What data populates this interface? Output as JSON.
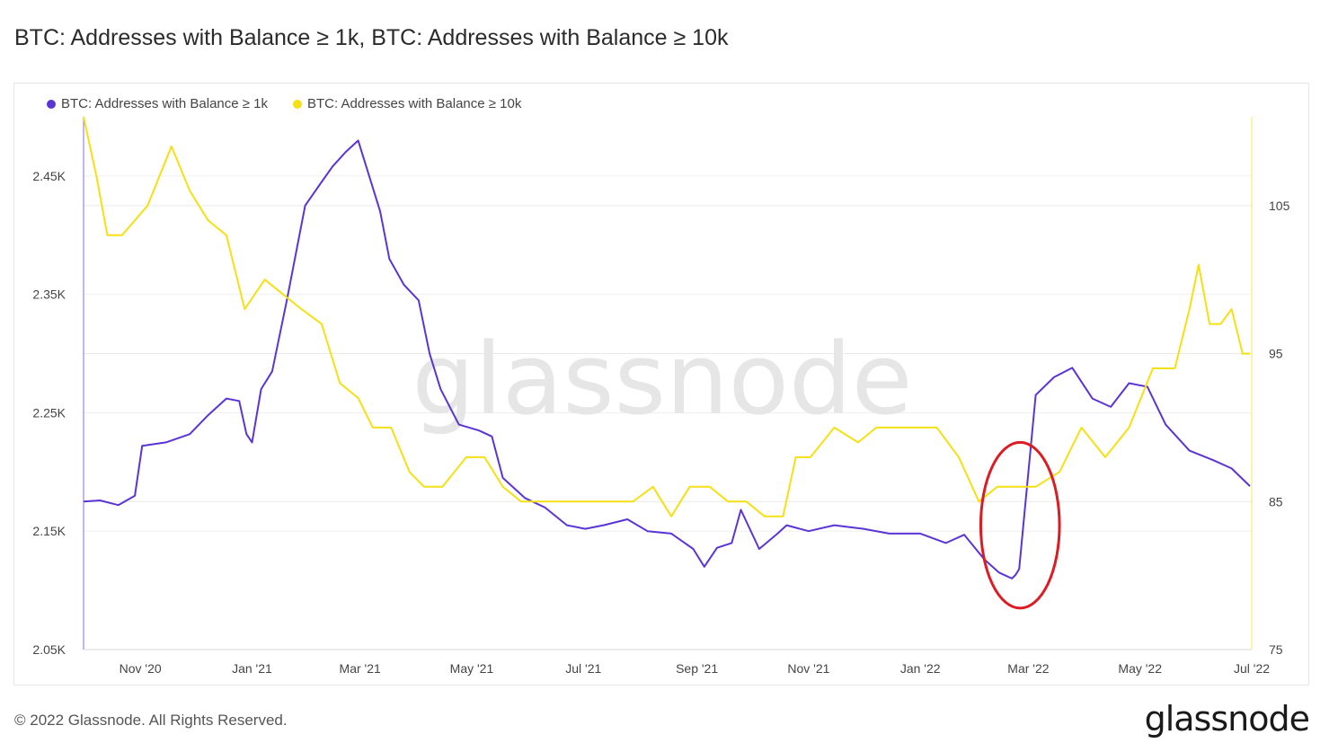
{
  "page": {
    "title": "BTC: Addresses with Balance ≥ 1k, BTC: Addresses with Balance ≥ 10k",
    "footer": "© 2022 Glassnode. All Rights Reserved.",
    "brand": "glassnode",
    "watermark": "glassnode"
  },
  "colors": {
    "series1": "#5b34d6",
    "series2": "#f5e016",
    "annotation": "#dd1b22"
  },
  "chart_data": {
    "type": "line",
    "title": "BTC: Addresses with Balance ≥ 1k, BTC: Addresses with Balance ≥ 10k",
    "x_ticks": [
      "Nov '20",
      "Jan '21",
      "Mar '21",
      "May '21",
      "Jul '21",
      "Sep '21",
      "Nov '21",
      "Jan '22",
      "Mar '22",
      "May '22",
      "Jul '22"
    ],
    "x_range": [
      "2020-10-01",
      "2022-07-01"
    ],
    "y_left": {
      "ticks": [
        "2.05K",
        "2.15K",
        "2.25K",
        "2.35K",
        "2.45K"
      ],
      "tick_values": [
        2050,
        2150,
        2250,
        2350,
        2450
      ],
      "range": [
        2050,
        2500
      ]
    },
    "y_right": {
      "ticks": [
        "75",
        "85",
        "95",
        "105"
      ],
      "tick_values": [
        75,
        85,
        95,
        105
      ],
      "range": [
        75,
        111
      ]
    },
    "grid": "horizontal",
    "legend_position": "top-left",
    "series": [
      {
        "name": "BTC: Addresses with Balance ≥ 1k",
        "axis": "left",
        "color": "#5b34d6",
        "x": [
          "2020-10-01",
          "2020-10-10",
          "2020-10-20",
          "2020-10-29",
          "2020-11-02",
          "2020-11-15",
          "2020-11-28",
          "2020-12-08",
          "2020-12-18",
          "2020-12-25",
          "2020-12-29",
          "2021-01-01",
          "2021-01-06",
          "2021-01-12",
          "2021-01-20",
          "2021-01-30",
          "2021-02-08",
          "2021-02-14",
          "2021-02-21",
          "2021-02-28",
          "2021-03-05",
          "2021-03-12",
          "2021-03-17",
          "2021-03-25",
          "2021-04-02",
          "2021-04-08",
          "2021-04-14",
          "2021-04-24",
          "2021-05-05",
          "2021-05-12",
          "2021-05-18",
          "2021-05-30",
          "2021-06-10",
          "2021-06-22",
          "2021-07-02",
          "2021-07-12",
          "2021-07-25",
          "2021-08-05",
          "2021-08-18",
          "2021-08-30",
          "2021-09-05",
          "2021-09-12",
          "2021-09-20",
          "2021-09-25",
          "2021-10-05",
          "2021-10-15",
          "2021-10-20",
          "2021-11-01",
          "2021-11-15",
          "2021-12-01",
          "2021-12-15",
          "2022-01-01",
          "2022-01-15",
          "2022-01-25",
          "2022-02-05",
          "2022-02-13",
          "2022-02-20",
          "2022-02-22",
          "2022-02-24",
          "2022-03-05",
          "2022-03-15",
          "2022-03-25",
          "2022-04-05",
          "2022-04-15",
          "2022-04-25",
          "2022-05-05",
          "2022-05-15",
          "2022-05-28",
          "2022-06-10",
          "2022-06-20",
          "2022-06-30"
        ],
        "y": [
          2175,
          2176,
          2172,
          2180,
          2222,
          2225,
          2232,
          2248,
          2262,
          2260,
          2232,
          2225,
          2270,
          2285,
          2345,
          2425,
          2445,
          2458,
          2470,
          2480,
          2455,
          2420,
          2380,
          2358,
          2345,
          2300,
          2270,
          2240,
          2235,
          2230,
          2195,
          2178,
          2170,
          2155,
          2152,
          2155,
          2160,
          2150,
          2148,
          2135,
          2120,
          2136,
          2140,
          2168,
          2135,
          2148,
          2155,
          2150,
          2155,
          2152,
          2148,
          2148,
          2140,
          2147,
          2126,
          2115,
          2110,
          2113,
          2118,
          2265,
          2280,
          2288,
          2262,
          2255,
          2275,
          2272,
          2240,
          2218,
          2210,
          2203,
          2188
        ]
      },
      {
        "name": "BTC: Addresses with Balance ≥ 10k",
        "axis": "right",
        "color": "#f5e016",
        "x": [
          "2020-10-01",
          "2020-10-08",
          "2020-10-14",
          "2020-10-22",
          "2020-11-05",
          "2020-11-18",
          "2020-11-28",
          "2020-12-08",
          "2020-12-18",
          "2020-12-28",
          "2021-01-08",
          "2021-01-18",
          "2021-01-28",
          "2021-02-08",
          "2021-02-18",
          "2021-02-28",
          "2021-03-08",
          "2021-03-18",
          "2021-03-28",
          "2021-04-05",
          "2021-04-15",
          "2021-04-28",
          "2021-05-08",
          "2021-05-18",
          "2021-05-28",
          "2021-06-08",
          "2021-06-18",
          "2021-06-28",
          "2021-07-08",
          "2021-07-18",
          "2021-07-28",
          "2021-08-08",
          "2021-08-18",
          "2021-08-28",
          "2021-09-08",
          "2021-09-18",
          "2021-09-28",
          "2021-10-08",
          "2021-10-18",
          "2021-10-25",
          "2021-11-02",
          "2021-11-15",
          "2021-11-28",
          "2021-12-08",
          "2021-12-18",
          "2021-12-28",
          "2022-01-10",
          "2022-01-22",
          "2022-02-02",
          "2022-02-12",
          "2022-02-22",
          "2022-03-05",
          "2022-03-18",
          "2022-03-30",
          "2022-04-12",
          "2022-04-25",
          "2022-05-08",
          "2022-05-20",
          "2022-05-28",
          "2022-06-02",
          "2022-06-08",
          "2022-06-14",
          "2022-06-20",
          "2022-06-26",
          "2022-06-30"
        ],
        "y": [
          111,
          107,
          103,
          103,
          105,
          109,
          106,
          104,
          103,
          98,
          100,
          99,
          98,
          97,
          93,
          92,
          90,
          90,
          87,
          86,
          86,
          88,
          88,
          86,
          85,
          85,
          85,
          85,
          85,
          85,
          85,
          86,
          84,
          86,
          86,
          85,
          85,
          84,
          84,
          88,
          88,
          90,
          89,
          90,
          90,
          90,
          90,
          88,
          85,
          86,
          86,
          86,
          87,
          90,
          88,
          90,
          94,
          94,
          98,
          101,
          97,
          97,
          98,
          95,
          95
        ]
      }
    ],
    "annotation": {
      "shape": "ellipse",
      "color": "#dd1b22",
      "x_range": [
        "2022-02-03",
        "2022-03-18"
      ],
      "y_range_left": [
        2085,
        2225
      ]
    }
  }
}
